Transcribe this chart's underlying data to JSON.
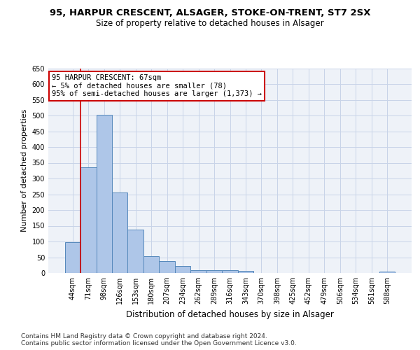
{
  "title1": "95, HARPUR CRESCENT, ALSAGER, STOKE-ON-TRENT, ST7 2SX",
  "title2": "Size of property relative to detached houses in Alsager",
  "xlabel": "Distribution of detached houses by size in Alsager",
  "ylabel": "Number of detached properties",
  "categories": [
    "44sqm",
    "71sqm",
    "98sqm",
    "126sqm",
    "153sqm",
    "180sqm",
    "207sqm",
    "234sqm",
    "262sqm",
    "289sqm",
    "316sqm",
    "343sqm",
    "370sqm",
    "398sqm",
    "425sqm",
    "452sqm",
    "479sqm",
    "506sqm",
    "534sqm",
    "561sqm",
    "588sqm"
  ],
  "bar_values": [
    97,
    335,
    503,
    255,
    138,
    53,
    37,
    22,
    10,
    10,
    10,
    7,
    0,
    0,
    0,
    0,
    0,
    0,
    0,
    0,
    5
  ],
  "bar_color": "#aec6e8",
  "bar_edge_color": "#5588bb",
  "grid_color": "#c8d4e8",
  "background_color": "#eef2f8",
  "vline_color": "#cc0000",
  "vline_x": 0.5,
  "annotation_text": "95 HARPUR CRESCENT: 67sqm\n← 5% of detached houses are smaller (78)\n95% of semi-detached houses are larger (1,373) →",
  "annotation_box_color": "#cc0000",
  "ylim": [
    0,
    650
  ],
  "yticks": [
    0,
    50,
    100,
    150,
    200,
    250,
    300,
    350,
    400,
    450,
    500,
    550,
    600,
    650
  ],
  "footer": "Contains HM Land Registry data © Crown copyright and database right 2024.\nContains public sector information licensed under the Open Government Licence v3.0.",
  "title1_fontsize": 9.5,
  "title2_fontsize": 8.5,
  "xlabel_fontsize": 8.5,
  "ylabel_fontsize": 8,
  "tick_fontsize": 7,
  "annotation_fontsize": 7.5,
  "footer_fontsize": 6.5
}
